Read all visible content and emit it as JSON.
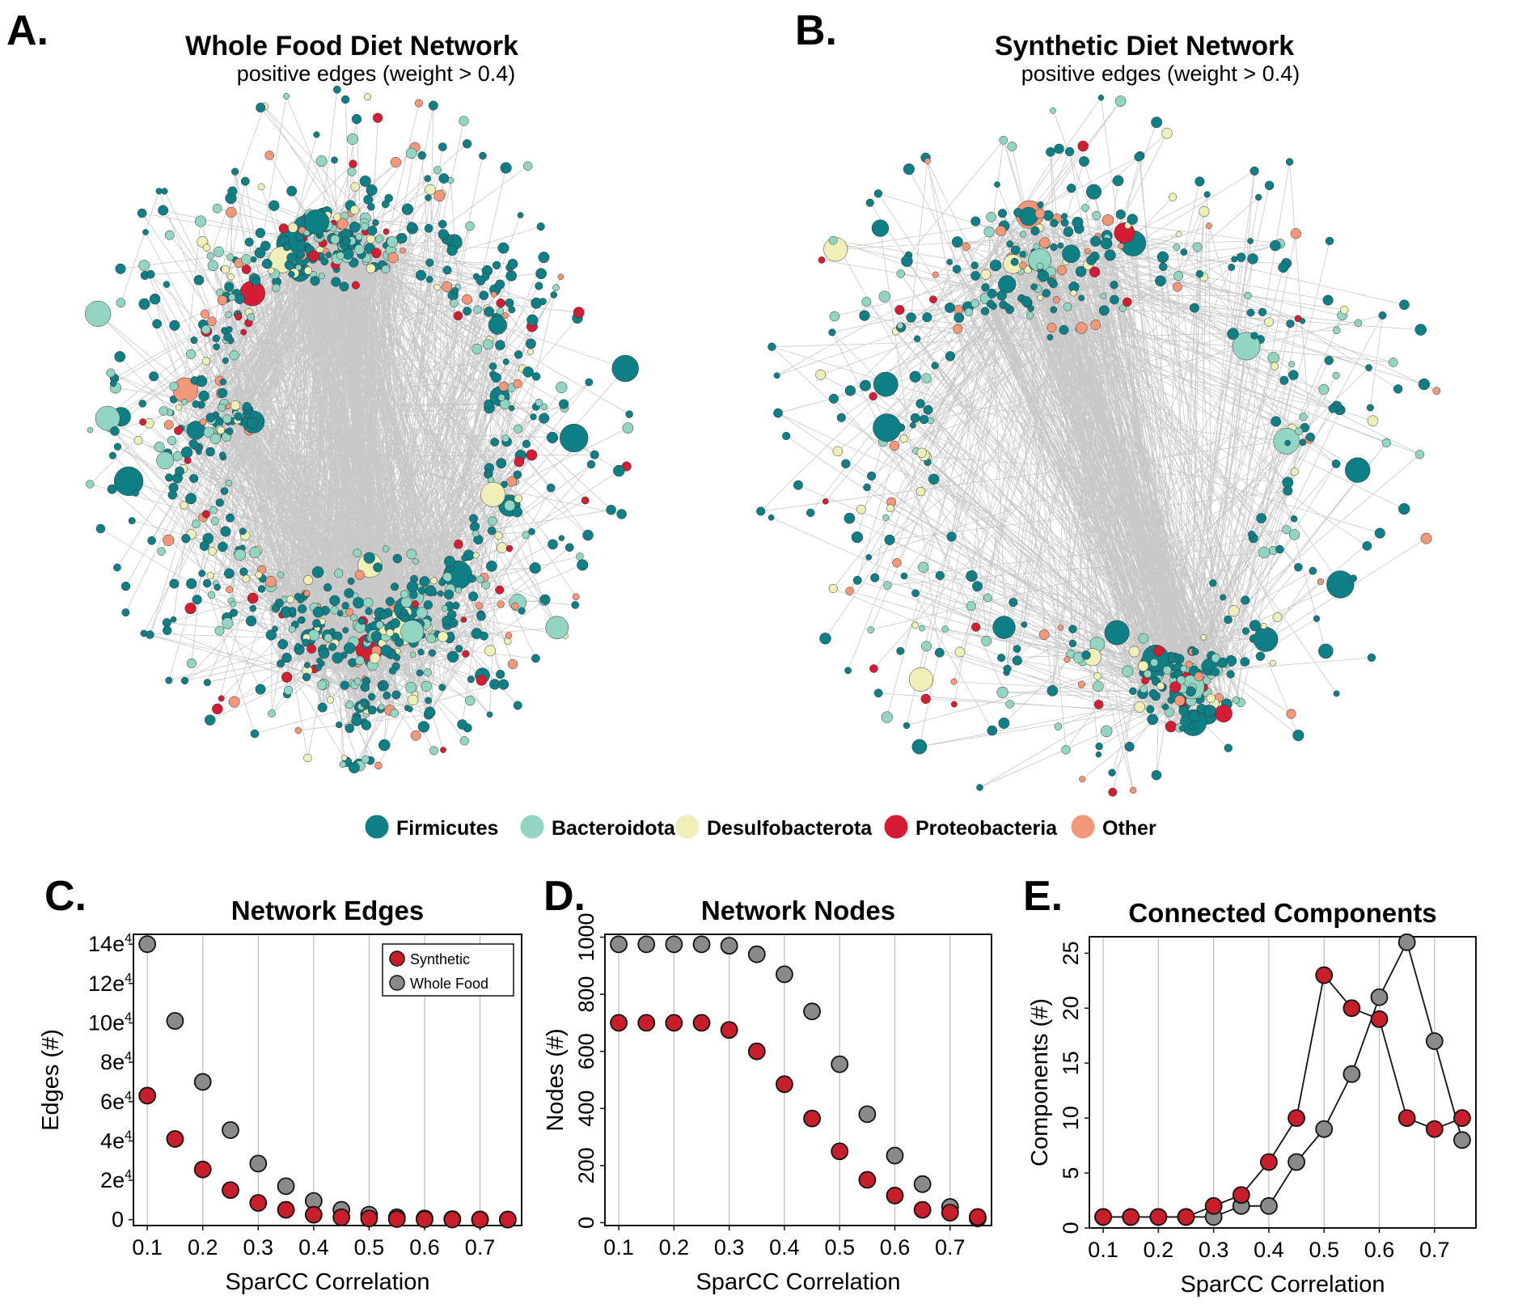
{
  "network_legend": {
    "items": [
      {
        "label": "Firmicutes",
        "color": "#0f7f86"
      },
      {
        "label": "Bacteroidota",
        "color": "#93d5c3"
      },
      {
        "label": "Desulfobacterota",
        "color": "#eef0b8"
      },
      {
        "label": "Proteobacteria",
        "color": "#d41c33"
      },
      {
        "label": "Other",
        "color": "#f2987a"
      }
    ]
  },
  "panel_a": {
    "letter": "A.",
    "title": "Whole Food Diet Network",
    "subtitle": "positive edges (weight > 0.4)"
  },
  "panel_b": {
    "letter": "B.",
    "title": "Synthetic Diet Network",
    "subtitle": "positive edges (weight > 0.4)"
  },
  "panel_c": {
    "letter": "C."
  },
  "panel_d": {
    "letter": "D."
  },
  "panel_e": {
    "letter": "E."
  },
  "colors": {
    "synthetic": "#c81e2b",
    "whole_food": "#8a8a8a",
    "edge": "#b5b5b5",
    "gridline": "#bcbcbc"
  },
  "chart_data": [
    {
      "type": "scatter",
      "title": "Network Edges",
      "xlabel": "SparCC Correlation",
      "ylabel": "Edges (#)",
      "xlim": [
        0.075,
        0.775
      ],
      "ylim": [
        -3000,
        145000
      ],
      "xticks": [
        0.1,
        0.2,
        0.3,
        0.4,
        0.5,
        0.6,
        0.7
      ],
      "xtick_labels": [
        "0.1",
        "0.2",
        "0.3",
        "0.4",
        "0.5",
        "0.6",
        "0.7"
      ],
      "yticks": [
        0,
        20000,
        40000,
        60000,
        80000,
        100000,
        120000,
        140000
      ],
      "ytick_base": [
        "0",
        "2e",
        "4e",
        "6e",
        "8e",
        "10e",
        "12e",
        "14e"
      ],
      "ytick_sup": [
        "",
        "4",
        "4",
        "4",
        "4",
        "4",
        "4",
        "4"
      ],
      "grid": "vertical",
      "legend": "top-right",
      "x": [
        0.1,
        0.15,
        0.2,
        0.25,
        0.3,
        0.35,
        0.4,
        0.45,
        0.5,
        0.55,
        0.6,
        0.65,
        0.7,
        0.75
      ],
      "series": [
        {
          "name": "Synthetic",
          "values": [
            63000,
            41000,
            25500,
            15000,
            8500,
            5000,
            2500,
            1200,
            600,
            300,
            150,
            80,
            40,
            20
          ],
          "connect": false
        },
        {
          "name": "Whole Food",
          "values": [
            140000,
            101000,
            70000,
            45500,
            28500,
            17000,
            9500,
            5000,
            2500,
            1200,
            600,
            300,
            150,
            80
          ],
          "connect": false
        }
      ]
    },
    {
      "type": "scatter",
      "title": "Network Nodes",
      "xlabel": "SparCC Correlation",
      "ylabel": "Nodes (#)",
      "xlim": [
        0.075,
        0.775
      ],
      "ylim": [
        -10,
        1010
      ],
      "xticks": [
        0.1,
        0.2,
        0.3,
        0.4,
        0.5,
        0.6,
        0.7
      ],
      "xtick_labels": [
        "0.1",
        "0.2",
        "0.3",
        "0.4",
        "0.5",
        "0.6",
        "0.7"
      ],
      "yticks": [
        0,
        200,
        400,
        600,
        800,
        1000
      ],
      "ytick_labels": [
        "0",
        "200",
        "400",
        "600",
        "800",
        "1000"
      ],
      "ytick_rotated": true,
      "grid": "vertical",
      "x": [
        0.1,
        0.15,
        0.2,
        0.25,
        0.3,
        0.35,
        0.4,
        0.45,
        0.5,
        0.55,
        0.6,
        0.65,
        0.7,
        0.75
      ],
      "series": [
        {
          "name": "Synthetic",
          "values": [
            700,
            700,
            700,
            700,
            675,
            600,
            485,
            365,
            250,
            150,
            95,
            45,
            35,
            20
          ],
          "connect": false
        },
        {
          "name": "Whole Food",
          "values": [
            975,
            975,
            975,
            975,
            970,
            940,
            870,
            740,
            555,
            380,
            235,
            135,
            55,
            15
          ],
          "connect": false
        }
      ]
    },
    {
      "type": "line",
      "title": "Connected Components",
      "xlabel": "SparCC Correlation",
      "ylabel": "Components (#)",
      "xlim": [
        0.075,
        0.775
      ],
      "ylim": [
        0,
        26.5
      ],
      "xticks": [
        0.1,
        0.2,
        0.3,
        0.4,
        0.5,
        0.6,
        0.7
      ],
      "xtick_labels": [
        "0.1",
        "0.2",
        "0.3",
        "0.4",
        "0.5",
        "0.6",
        "0.7"
      ],
      "yticks": [
        0,
        5,
        10,
        15,
        20,
        25
      ],
      "ytick_labels": [
        "0",
        "5",
        "10",
        "15",
        "20",
        "25"
      ],
      "ytick_rotated": true,
      "grid": "vertical",
      "x": [
        0.1,
        0.15,
        0.2,
        0.25,
        0.3,
        0.35,
        0.4,
        0.45,
        0.5,
        0.55,
        0.6,
        0.65,
        0.7,
        0.75
      ],
      "series": [
        {
          "name": "Synthetic",
          "values": [
            1,
            1,
            1,
            1,
            2,
            3,
            6,
            10,
            23,
            20,
            19,
            10,
            9,
            10
          ],
          "connect": true
        },
        {
          "name": "Whole Food",
          "values": [
            1,
            1,
            1,
            1,
            1,
            2,
            2,
            6,
            9,
            14,
            21,
            26,
            17,
            8
          ],
          "connect": true
        }
      ]
    }
  ]
}
